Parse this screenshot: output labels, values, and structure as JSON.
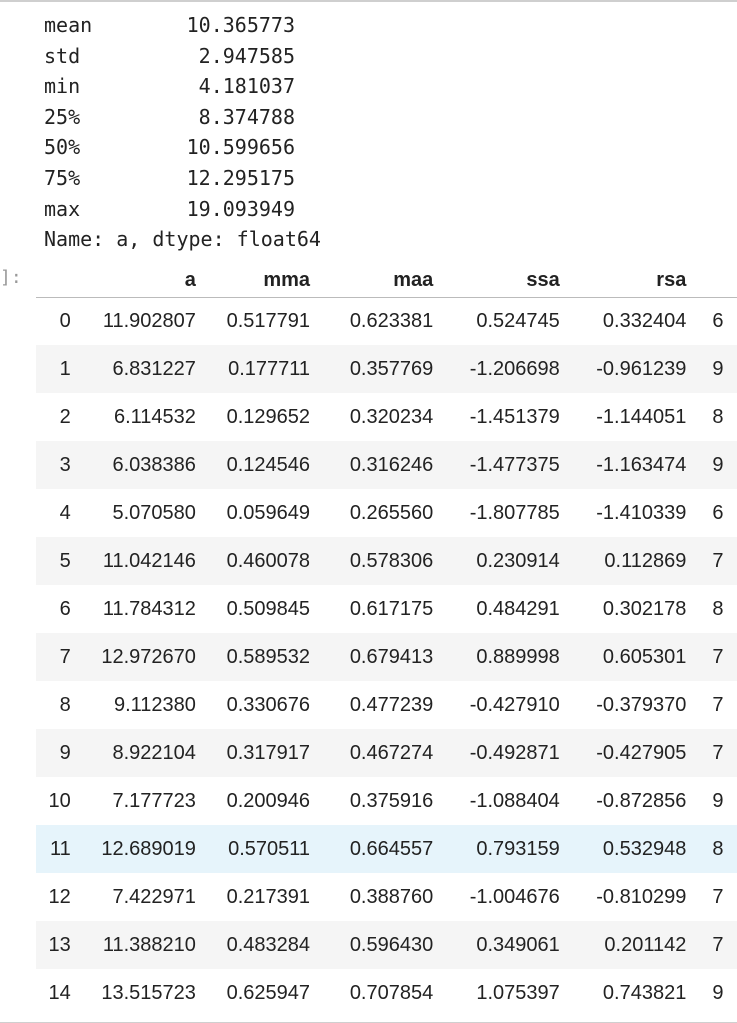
{
  "output_lines": [
    {
      "label": "mean",
      "value": "10.365773"
    },
    {
      "label": "std",
      "value": "2.947585"
    },
    {
      "label": "min",
      "value": "4.181037"
    },
    {
      "label": "25%",
      "value": "8.374788"
    },
    {
      "label": "50%",
      "value": "10.599656"
    },
    {
      "label": "75%",
      "value": "12.295175"
    },
    {
      "label": "max",
      "value": "19.093949"
    }
  ],
  "name_line": "Name: a, dtype: float64",
  "prompt": "]:",
  "table": {
    "columns": [
      "a",
      "mma",
      "maa",
      "ssa",
      "rsa"
    ],
    "rows": [
      {
        "index": "0",
        "cells": [
          "11.902807",
          "0.517791",
          "0.623381",
          "0.524745",
          "0.332404"
        ],
        "clipped": "6"
      },
      {
        "index": "1",
        "cells": [
          "6.831227",
          "0.177711",
          "0.357769",
          "-1.206698",
          "-0.961239"
        ],
        "clipped": "9"
      },
      {
        "index": "2",
        "cells": [
          "6.114532",
          "0.129652",
          "0.320234",
          "-1.451379",
          "-1.144051"
        ],
        "clipped": "8"
      },
      {
        "index": "3",
        "cells": [
          "6.038386",
          "0.124546",
          "0.316246",
          "-1.477375",
          "-1.163474"
        ],
        "clipped": "9"
      },
      {
        "index": "4",
        "cells": [
          "5.070580",
          "0.059649",
          "0.265560",
          "-1.807785",
          "-1.410339"
        ],
        "clipped": "6"
      },
      {
        "index": "5",
        "cells": [
          "11.042146",
          "0.460078",
          "0.578306",
          "0.230914",
          "0.112869"
        ],
        "clipped": "7"
      },
      {
        "index": "6",
        "cells": [
          "11.784312",
          "0.509845",
          "0.617175",
          "0.484291",
          "0.302178"
        ],
        "clipped": "8"
      },
      {
        "index": "7",
        "cells": [
          "12.972670",
          "0.589532",
          "0.679413",
          "0.889998",
          "0.605301"
        ],
        "clipped": "7"
      },
      {
        "index": "8",
        "cells": [
          "9.112380",
          "0.330676",
          "0.477239",
          "-0.427910",
          "-0.379370"
        ],
        "clipped": "7"
      },
      {
        "index": "9",
        "cells": [
          "8.922104",
          "0.317917",
          "0.467274",
          "-0.492871",
          "-0.427905"
        ],
        "clipped": "7"
      },
      {
        "index": "10",
        "cells": [
          "7.177723",
          "0.200946",
          "0.375916",
          "-1.088404",
          "-0.872856"
        ],
        "clipped": "9"
      },
      {
        "index": "11",
        "cells": [
          "12.689019",
          "0.570511",
          "0.664557",
          "0.793159",
          "0.532948"
        ],
        "clipped": "8"
      },
      {
        "index": "12",
        "cells": [
          "7.422971",
          "0.217391",
          "0.388760",
          "-1.004676",
          "-0.810299"
        ],
        "clipped": "7"
      },
      {
        "index": "13",
        "cells": [
          "11.388210",
          "0.483284",
          "0.596430",
          "0.349061",
          "0.201142"
        ],
        "clipped": "7"
      },
      {
        "index": "14",
        "cells": [
          "13.515723",
          "0.625947",
          "0.707854",
          "1.075397",
          "0.743821"
        ],
        "clipped": "9"
      }
    ],
    "highlighted_row": 11
  }
}
